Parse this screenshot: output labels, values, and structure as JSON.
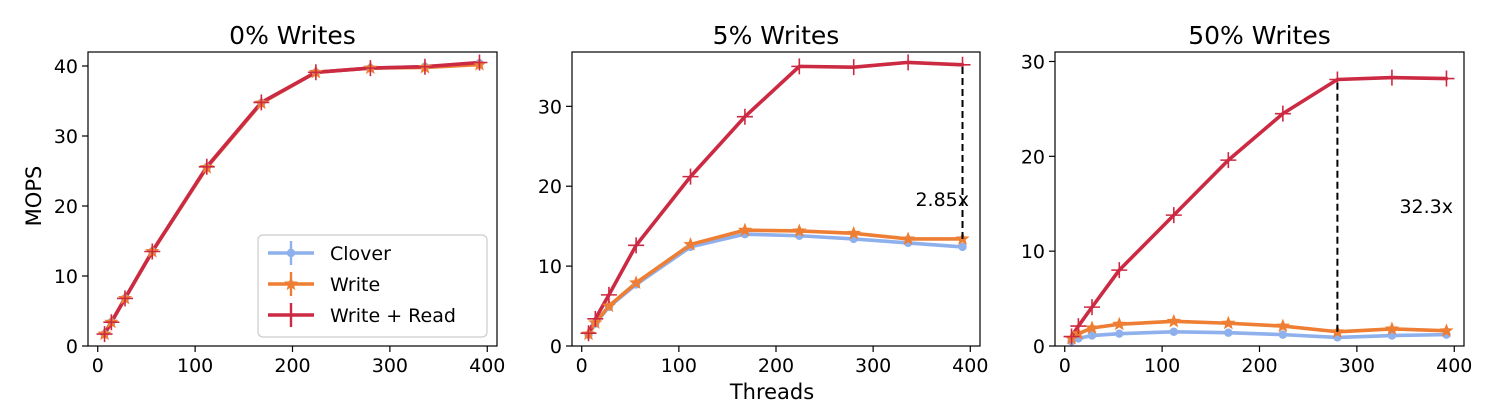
{
  "figure": {
    "xlabel": "Threads",
    "ylabel": "MOPS"
  },
  "colors": {
    "clover": "#8eb0ec",
    "write": "#ee7e33",
    "write_read": "#cc2a42"
  },
  "legend": {
    "placement": "lower-right",
    "entries": [
      {
        "name": "Clover",
        "color": "#8eb0ec",
        "marker": "circle"
      },
      {
        "name": "Write",
        "color": "#ee7e33",
        "marker": "star"
      },
      {
        "name": "Write + Read",
        "color": "#cc2a42",
        "marker": "plus"
      }
    ]
  },
  "chart_data": [
    {
      "type": "line",
      "title": "0% Writes",
      "xlabel": "",
      "ylabel": "MOPS",
      "xlim": [
        -10,
        410
      ],
      "ylim": [
        0,
        42
      ],
      "xticks": [
        0,
        100,
        200,
        300,
        400
      ],
      "yticks": [
        0,
        10,
        20,
        30,
        40
      ],
      "x": [
        7,
        14,
        28,
        56,
        112,
        168,
        224,
        280,
        336,
        392
      ],
      "series": [
        {
          "name": "Clover",
          "values": [
            1.7,
            3.4,
            6.8,
            13.5,
            25.5,
            34.7,
            39.1,
            39.7,
            39.9,
            40.4
          ]
        },
        {
          "name": "Write",
          "values": [
            1.7,
            3.4,
            6.8,
            13.5,
            25.5,
            34.7,
            39.1,
            39.7,
            39.8,
            40.2
          ]
        },
        {
          "name": "Write + Read",
          "values": [
            1.7,
            3.4,
            6.8,
            13.5,
            25.6,
            34.8,
            39.1,
            39.7,
            39.9,
            40.5
          ]
        }
      ],
      "annotation": null
    },
    {
      "type": "line",
      "title": "5% Writes",
      "xlabel": "Threads",
      "ylabel": "",
      "xlim": [
        -10,
        410
      ],
      "ylim": [
        0,
        36.8
      ],
      "xticks": [
        0,
        100,
        200,
        300,
        400
      ],
      "yticks": [
        0,
        10,
        20,
        30
      ],
      "x": [
        7,
        14,
        28,
        56,
        112,
        168,
        224,
        280,
        336,
        392
      ],
      "series": [
        {
          "name": "Clover",
          "values": [
            1.4,
            2.8,
            4.9,
            7.7,
            12.4,
            14.0,
            13.8,
            13.4,
            12.9,
            12.4
          ]
        },
        {
          "name": "Write",
          "values": [
            1.5,
            2.9,
            5.0,
            7.9,
            12.7,
            14.5,
            14.4,
            14.1,
            13.4,
            13.4
          ]
        },
        {
          "name": "Write + Read",
          "values": [
            1.6,
            3.4,
            6.4,
            12.6,
            21.2,
            28.7,
            35.0,
            34.9,
            35.5,
            35.2
          ]
        }
      ],
      "annotation": {
        "text": "2.85x",
        "x": 392,
        "y_from": 13.4,
        "y_to": 35.2
      }
    },
    {
      "type": "line",
      "title": "50% Writes",
      "xlabel": "",
      "ylabel": "",
      "xlim": [
        -10,
        410
      ],
      "ylim": [
        0,
        31
      ],
      "xticks": [
        0,
        100,
        200,
        300,
        400
      ],
      "yticks": [
        0,
        10,
        20,
        30
      ],
      "x": [
        7,
        14,
        28,
        56,
        112,
        168,
        224,
        280,
        336,
        392
      ],
      "series": [
        {
          "name": "Clover",
          "values": [
            0.5,
            0.8,
            1.1,
            1.3,
            1.5,
            1.4,
            1.2,
            0.9,
            1.1,
            1.2
          ]
        },
        {
          "name": "Write",
          "values": [
            0.8,
            1.3,
            1.9,
            2.3,
            2.6,
            2.4,
            2.1,
            1.5,
            1.8,
            1.6
          ]
        },
        {
          "name": "Write + Read",
          "values": [
            1.0,
            2.1,
            4.1,
            8.0,
            13.8,
            19.6,
            24.5,
            28.1,
            28.3,
            28.2
          ]
        }
      ],
      "annotation": {
        "text": "32.3x",
        "x": 280,
        "y_from": 1.5,
        "y_to": 28.1
      }
    }
  ]
}
